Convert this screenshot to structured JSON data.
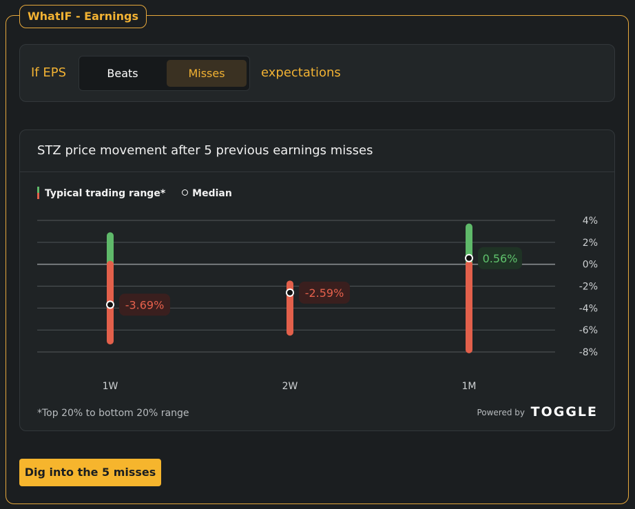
{
  "widget": {
    "title": "WhatIF - Earnings"
  },
  "eps_selector": {
    "prefix": "If EPS",
    "options": [
      "Beats",
      "Misses"
    ],
    "selected": "Misses",
    "suffix": "expectations"
  },
  "chart_panel": {
    "title": "STZ price movement after 5 previous earnings misses",
    "legend_range": "Typical trading range*",
    "legend_median": "Median",
    "footnote": "*Top 20% to bottom 20% range",
    "powered_by": "Powered by",
    "brand": "TOGGLE"
  },
  "cta": {
    "label": "Dig into the 5 misses"
  },
  "colors": {
    "accent": "#f2b233",
    "positive": "#5fb96a",
    "negative": "#e2604b",
    "background": "#1b1e20"
  },
  "chart_data": {
    "type": "range",
    "categories": [
      "1W",
      "2W",
      "1M"
    ],
    "series": [
      {
        "name": "Typical trading range*",
        "ranges": [
          {
            "low": -7.0,
            "high": 2.6
          },
          {
            "low": -6.2,
            "high": -1.8
          },
          {
            "low": -7.8,
            "high": 3.4
          }
        ]
      },
      {
        "name": "Median",
        "values": [
          -3.69,
          -2.59,
          0.56
        ]
      }
    ],
    "data_labels": [
      "-3.69%",
      "-2.59%",
      "0.56%"
    ],
    "y_ticks": [
      "4%",
      "2%",
      "0%",
      "-2%",
      "-4%",
      "-6%",
      "-8%"
    ],
    "ylim": [
      -8,
      4
    ],
    "grid": true,
    "legend": "top-left"
  }
}
